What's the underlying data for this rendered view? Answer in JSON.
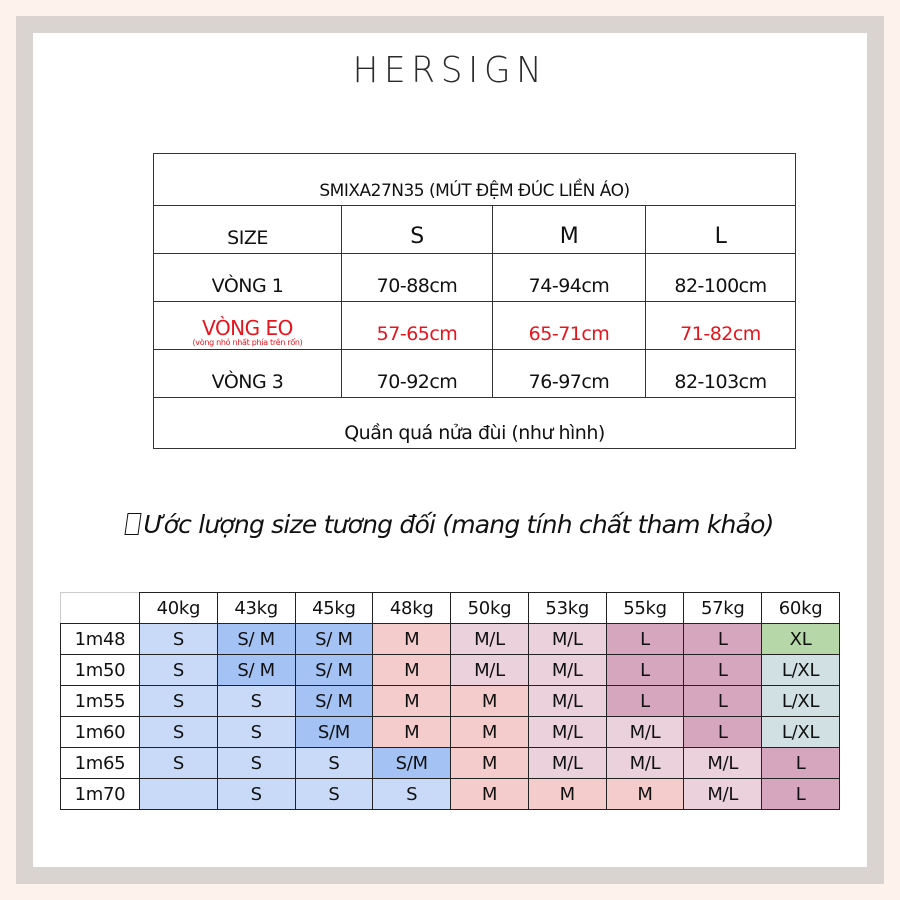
{
  "brand": {
    "logo": "HERSIGN"
  },
  "size_chart": {
    "product_title": "SMIXA27N35 (MÚT ĐỆM ĐÚC LIỀN ÁO)",
    "header": {
      "label": "SIZE",
      "sizes": [
        "S",
        "M",
        "L"
      ]
    },
    "rows": [
      {
        "label": "VÒNG 1",
        "note": "",
        "values": [
          "70-88cm",
          "74-94cm",
          "82-100cm"
        ],
        "highlight": false
      },
      {
        "label": "VÒNG EO",
        "note": "(vòng nhỏ nhất phía trên rốn)",
        "values": [
          "57-65cm",
          "65-71cm",
          "71-82cm"
        ],
        "highlight": true
      },
      {
        "label": "VÒNG 3",
        "note": "",
        "values": [
          "70-92cm",
          "76-97cm",
          "82-103cm"
        ],
        "highlight": false
      }
    ],
    "footer": "Quần quá nửa đùi (như hình)",
    "highlight_color": "#e8141c"
  },
  "estimate": {
    "title_icon": "missing-glyph-box",
    "title": "Ước lượng size tương đối (mang tính chất tham khảo)",
    "weights": [
      "40kg",
      "43kg",
      "45kg",
      "48kg",
      "50kg",
      "53kg",
      "55kg",
      "57kg",
      "60kg"
    ],
    "rows": [
      {
        "height": "1m48",
        "cells": [
          {
            "v": "S",
            "c": "s"
          },
          {
            "v": "S/ M",
            "c": "sm"
          },
          {
            "v": "S/ M",
            "c": "sm"
          },
          {
            "v": "M",
            "c": "m"
          },
          {
            "v": "M/L",
            "c": "ml"
          },
          {
            "v": "M/L",
            "c": "ml"
          },
          {
            "v": "L",
            "c": "l"
          },
          {
            "v": "L",
            "c": "l"
          },
          {
            "v": "XL",
            "c": "xl"
          }
        ]
      },
      {
        "height": "1m50",
        "cells": [
          {
            "v": "S",
            "c": "s"
          },
          {
            "v": "S/ M",
            "c": "sm"
          },
          {
            "v": "S/ M",
            "c": "sm"
          },
          {
            "v": "M",
            "c": "m"
          },
          {
            "v": "M/L",
            "c": "ml"
          },
          {
            "v": "M/L",
            "c": "ml"
          },
          {
            "v": "L",
            "c": "l"
          },
          {
            "v": "L",
            "c": "l"
          },
          {
            "v": "L/XL",
            "c": "lxl"
          }
        ]
      },
      {
        "height": "1m55",
        "cells": [
          {
            "v": "S",
            "c": "s"
          },
          {
            "v": "S",
            "c": "s"
          },
          {
            "v": "S/ M",
            "c": "sm"
          },
          {
            "v": "M",
            "c": "m"
          },
          {
            "v": "M",
            "c": "m"
          },
          {
            "v": "M/L",
            "c": "ml"
          },
          {
            "v": "L",
            "c": "l"
          },
          {
            "v": "L",
            "c": "l"
          },
          {
            "v": "L/XL",
            "c": "lxl"
          }
        ]
      },
      {
        "height": "1m60",
        "cells": [
          {
            "v": "S",
            "c": "s"
          },
          {
            "v": "S",
            "c": "s"
          },
          {
            "v": "S/M",
            "c": "sm"
          },
          {
            "v": "M",
            "c": "m"
          },
          {
            "v": "M",
            "c": "m"
          },
          {
            "v": "M/L",
            "c": "ml"
          },
          {
            "v": "M/L",
            "c": "ml"
          },
          {
            "v": "L",
            "c": "l"
          },
          {
            "v": "L/XL",
            "c": "lxl"
          }
        ]
      },
      {
        "height": "1m65",
        "cells": [
          {
            "v": "S",
            "c": "s"
          },
          {
            "v": "S",
            "c": "s"
          },
          {
            "v": "S",
            "c": "s"
          },
          {
            "v": "S/M",
            "c": "sm"
          },
          {
            "v": "M",
            "c": "m"
          },
          {
            "v": "M/L",
            "c": "ml"
          },
          {
            "v": "M/L",
            "c": "ml"
          },
          {
            "v": "M/L",
            "c": "ml"
          },
          {
            "v": "L",
            "c": "l"
          }
        ]
      },
      {
        "height": "1m70",
        "cells": [
          {
            "v": "",
            "c": "s"
          },
          {
            "v": "S",
            "c": "s"
          },
          {
            "v": "S",
            "c": "s"
          },
          {
            "v": "S",
            "c": "s"
          },
          {
            "v": "M",
            "c": "m"
          },
          {
            "v": "M",
            "c": "m"
          },
          {
            "v": "M",
            "c": "m"
          },
          {
            "v": "M/L",
            "c": "ml"
          },
          {
            "v": "L",
            "c": "l"
          }
        ]
      }
    ],
    "colors": {
      "s": "#c9daf8",
      "sm": "#a4c2f4",
      "m": "#f4cccc",
      "ml": "#ead1dc",
      "l": "#d5a6bd",
      "xl": "#b6d7a8",
      "lxl": "#d0e0e3"
    }
  }
}
